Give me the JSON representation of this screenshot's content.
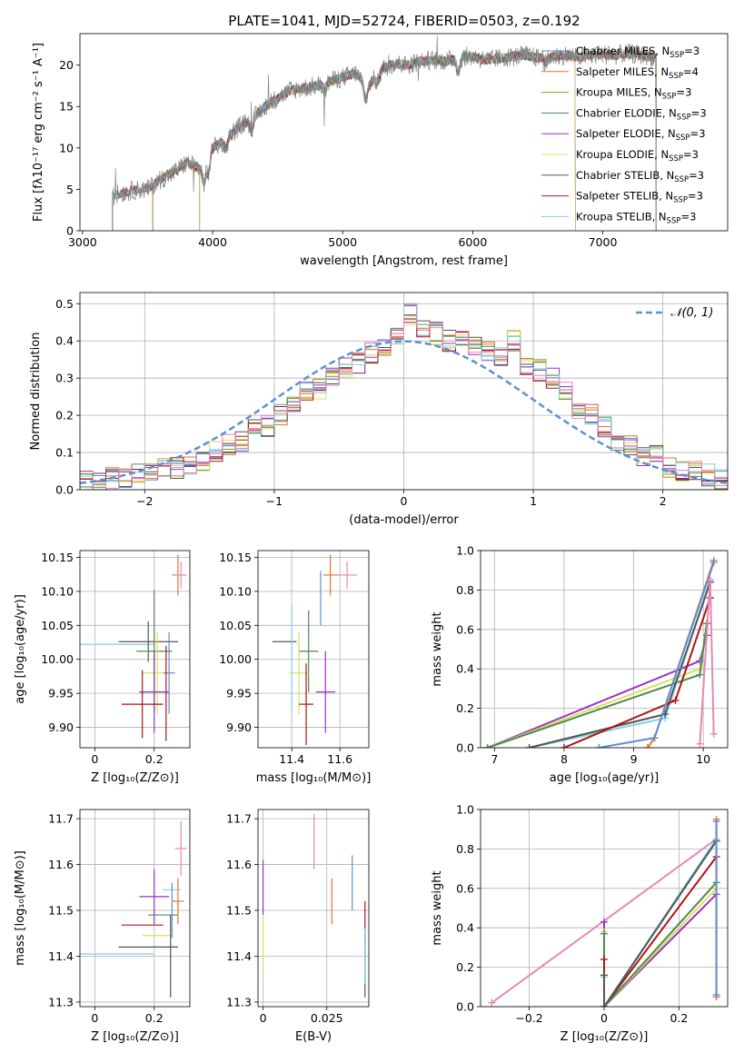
{
  "figure": {
    "title": "PLATE=1041, MJD=52724, FIBERID=0503, z=0.192"
  },
  "colors": {
    "Chabrier MILES": "#5b8fd8",
    "Salpeter MILES": "#e8742c",
    "Kroupa MILES": "#b8861b",
    "Chabrier ELODIE": "#4e8a4e",
    "Salpeter ELODIE": "#9b30c8",
    "Kroupa ELODIE": "#d6e060",
    "Chabrier STELIB": "#555555",
    "Salpeter STELIB": "#b01515",
    "Kroupa STELIB": "#7fd3e0",
    "pink": "#e887b8",
    "data": "#808080"
  },
  "chart_data": [
    {
      "id": "spectrum",
      "type": "line",
      "xlabel": "wavelength [Angstrom, rest frame]",
      "ylabel": "Flux [fλ10⁻¹⁷ erg cm⁻² s⁻¹ A⁻¹]",
      "xlim": [
        2980,
        7960
      ],
      "ylim": [
        0,
        23.8
      ],
      "xticks": [
        3000,
        4000,
        5000,
        6000,
        7000
      ],
      "yticks": [
        0,
        5,
        10,
        15,
        20
      ],
      "grid": false,
      "legend_position": "upper-right",
      "legend": [
        {
          "name": "Chabrier MILES",
          "suffix": "N",
          "sub": "SSP",
          "val": "=3"
        },
        {
          "name": "Salpeter MILES",
          "suffix": "N",
          "sub": "SSP",
          "val": "=4"
        },
        {
          "name": "Kroupa MILES",
          "suffix": "N",
          "sub": "SSP",
          "val": "=3"
        },
        {
          "name": "Chabrier ELODIE",
          "suffix": "N",
          "sub": "SSP",
          "val": "=3"
        },
        {
          "name": "Salpeter ELODIE",
          "suffix": "N",
          "sub": "SSP",
          "val": "=3"
        },
        {
          "name": "Kroupa ELODIE",
          "suffix": "N",
          "sub": "SSP",
          "val": "=3"
        },
        {
          "name": "Chabrier STELIB",
          "suffix": "N",
          "sub": "SSP",
          "val": "=3"
        },
        {
          "name": "Salpeter STELIB",
          "suffix": "N",
          "sub": "SSP",
          "val": "=3"
        },
        {
          "name": "Kroupa STELIB",
          "suffix": "N",
          "sub": "SSP",
          "val": "=3"
        }
      ],
      "continuum": [
        [
          3230,
          4.2
        ],
        [
          3300,
          4.6
        ],
        [
          3400,
          4.9
        ],
        [
          3500,
          5.0
        ],
        [
          3600,
          6.2
        ],
        [
          3700,
          7.0
        ],
        [
          3800,
          8.2
        ],
        [
          3900,
          7.5
        ],
        [
          4000,
          10.0
        ],
        [
          4100,
          11.0
        ],
        [
          4200,
          12.5
        ],
        [
          4300,
          13.5
        ],
        [
          4400,
          15.0
        ],
        [
          4500,
          16.0
        ],
        [
          4600,
          17.0
        ],
        [
          4700,
          17.2
        ],
        [
          4800,
          17.5
        ],
        [
          4900,
          18.0
        ],
        [
          5000,
          18.5
        ],
        [
          5100,
          19.0
        ],
        [
          5200,
          17.5
        ],
        [
          5300,
          19.5
        ],
        [
          5400,
          20.2
        ],
        [
          5500,
          20.0
        ],
        [
          5600,
          20.5
        ],
        [
          5700,
          20.6
        ],
        [
          5800,
          20.5
        ],
        [
          5900,
          21.0
        ],
        [
          6000,
          21.0
        ],
        [
          6100,
          20.6
        ],
        [
          6200,
          20.8
        ],
        [
          6300,
          21.0
        ],
        [
          6400,
          21.2
        ],
        [
          6500,
          20.9
        ],
        [
          6600,
          21.0
        ],
        [
          6700,
          21.2
        ],
        [
          6800,
          21.0
        ],
        [
          6900,
          21.1
        ],
        [
          7000,
          21.3
        ],
        [
          7100,
          21.2
        ],
        [
          7200,
          21.4
        ],
        [
          7300,
          21.2
        ],
        [
          7400,
          21.0
        ]
      ],
      "model_ranges": {
        "Chabrier MILES": [
          3540,
          7410
        ],
        "Salpeter MILES": [
          3540,
          7410
        ],
        "Kroupa MILES": [
          3540,
          7410
        ],
        "Chabrier ELODIE": [
          3900,
          6790
        ],
        "Salpeter ELODIE": [
          3900,
          6790
        ],
        "Kroupa ELODIE": [
          3900,
          6790
        ],
        "Chabrier STELIB": [
          3230,
          7410
        ],
        "Salpeter STELIB": [
          3230,
          7410
        ],
        "Kroupa STELIB": [
          3230,
          7410
        ]
      }
    },
    {
      "id": "residuals",
      "type": "area",
      "xlabel": "(data-model)/error",
      "ylabel": "Normed distribution",
      "xlim": [
        -2.5,
        2.5
      ],
      "ylim": [
        0,
        0.53
      ],
      "xticks": [
        -2,
        -1,
        0,
        1,
        2
      ],
      "yticks": [
        0.0,
        0.1,
        0.2,
        0.3,
        0.4,
        0.5
      ],
      "grid": true,
      "legend_position": "upper-right",
      "gaussian_label": "𝒩(0, 1)",
      "bin_width": 0.1,
      "bin_start": -2.5,
      "base_hist": [
        0.02,
        0.025,
        0.03,
        0.035,
        0.04,
        0.05,
        0.055,
        0.06,
        0.07,
        0.08,
        0.1,
        0.12,
        0.13,
        0.16,
        0.17,
        0.2,
        0.22,
        0.26,
        0.27,
        0.3,
        0.33,
        0.34,
        0.37,
        0.38,
        0.41,
        0.47,
        0.43,
        0.42,
        0.4,
        0.4,
        0.38,
        0.37,
        0.36,
        0.4,
        0.33,
        0.32,
        0.3,
        0.26,
        0.22,
        0.2,
        0.17,
        0.13,
        0.12,
        0.09,
        0.09,
        0.06,
        0.05,
        0.05,
        0.04,
        0.03
      ]
    },
    {
      "id": "age_vs_Z",
      "type": "scatter",
      "xlabel": "Z [log₁₀(Z/Z⊙)]",
      "ylabel": "age  [log₁₀(age/yr)]",
      "xlim": [
        -0.05,
        0.32
      ],
      "ylim": [
        9.87,
        10.16
      ],
      "xticks": [
        0.0,
        0.2
      ],
      "yticks": [
        9.9,
        9.95,
        10.0,
        10.05,
        10.1,
        10.15
      ],
      "grid": true,
      "points": [
        {
          "series": "Kroupa STELIB",
          "x": 0.05,
          "xerr": 0.15,
          "y": 10.022,
          "yerr": 0
        },
        {
          "series": "Chabrier STELIB",
          "x": 0.18,
          "xerr": 0.1,
          "y": 10.026,
          "yerr": 0.03
        },
        {
          "series": "Chabrier ELODIE",
          "x": 0.2,
          "xerr": 0.06,
          "y": 10.012,
          "yerr": 0.09
        },
        {
          "series": "Kroupa ELODIE",
          "x": 0.21,
          "xerr": 0.05,
          "y": 9.98,
          "yerr": 0.06
        },
        {
          "series": "Salpeter ELODIE",
          "x": 0.2,
          "xerr": 0.05,
          "y": 9.952,
          "yerr": 0.06
        },
        {
          "series": "Salpeter STELIB",
          "x": 0.16,
          "xerr": 0.07,
          "y": 9.934,
          "yerr": 0.05
        },
        {
          "series": "Chabrier MILES",
          "x": 0.25,
          "xerr": 0.02,
          "y": 9.98,
          "yerr": 0.06
        },
        {
          "series": "Salpeter STELIB",
          "x": 0.24,
          "xerr": 0.0,
          "y": 9.95,
          "yerr": 0.07
        },
        {
          "series": "Salpeter MILES",
          "x": 0.28,
          "xerr": 0.02,
          "y": 10.124,
          "yerr": 0.03
        },
        {
          "series": "pink",
          "x": 0.29,
          "xerr": 0.02,
          "y": 10.124,
          "yerr": 0.02
        }
      ]
    },
    {
      "id": "age_vs_mass",
      "type": "scatter",
      "xlabel": "mass [log₁₀(M/M⊙)]",
      "ylabel": "",
      "xlim": [
        11.26,
        11.72
      ],
      "ylim": [
        9.87,
        10.16
      ],
      "xticks": [
        11.4,
        11.6
      ],
      "yticks": [
        9.9,
        9.95,
        10.0,
        10.05,
        10.1,
        10.15
      ],
      "grid": true,
      "points": [
        {
          "series": "Chabrier STELIB",
          "x": 11.37,
          "xerr": 0.05,
          "y": 10.026,
          "yerr": 0
        },
        {
          "series": "Chabrier ELODIE",
          "x": 11.47,
          "xerr": 0.04,
          "y": 10.012,
          "yerr": 0.06
        },
        {
          "series": "Kroupa ELODIE",
          "x": 11.43,
          "xerr": 0.04,
          "y": 9.98,
          "yerr": 0.06
        },
        {
          "series": "Salpeter ELODIE",
          "x": 11.54,
          "xerr": 0.04,
          "y": 9.952,
          "yerr": 0.06
        },
        {
          "series": "Salpeter STELIB",
          "x": 11.46,
          "xerr": 0.03,
          "y": 9.934,
          "yerr": 0.06
        },
        {
          "series": "Salpeter MILES",
          "x": 11.56,
          "xerr": 0.03,
          "y": 10.124,
          "yerr": 0.03
        },
        {
          "series": "pink",
          "x": 11.63,
          "xerr": 0.04,
          "y": 10.124,
          "yerr": 0.02
        },
        {
          "series": "Kroupa STELIB",
          "x": 11.4,
          "xerr": 0.0,
          "y": 10.0,
          "yerr": 0.08
        },
        {
          "series": "Chabrier MILES",
          "x": 11.52,
          "xerr": 0.0,
          "y": 10.09,
          "yerr": 0.04
        }
      ]
    },
    {
      "id": "weight_vs_age",
      "type": "line",
      "xlabel": "age  [log₁₀(age/yr)]",
      "ylabel": "mass weight",
      "xlim": [
        6.8,
        10.35
      ],
      "ylim": [
        0,
        1.0
      ],
      "xticks": [
        7,
        8,
        9,
        10
      ],
      "yticks": [
        0.0,
        0.2,
        0.4,
        0.6,
        0.8,
        1.0
      ],
      "grid": true,
      "lines": [
        {
          "series": "Salpeter ELODIE",
          "points": [
            [
              6.9,
              0.0
            ],
            [
              9.95,
              0.44
            ],
            [
              10.05,
              0.57
            ]
          ]
        },
        {
          "series": "Kroupa ELODIE",
          "points": [
            [
              6.9,
              0.0
            ],
            [
              9.95,
              0.4
            ],
            [
              10.05,
              0.6
            ]
          ]
        },
        {
          "series": "Chabrier ELODIE",
          "points": [
            [
              6.9,
              0.0
            ],
            [
              9.95,
              0.37
            ],
            [
              10.05,
              0.63
            ]
          ]
        },
        {
          "series": "Kroupa STELIB",
          "points": [
            [
              7.5,
              0.0
            ],
            [
              9.45,
              0.15
            ],
            [
              10.1,
              0.85
            ]
          ]
        },
        {
          "series": "Chabrier STELIB",
          "points": [
            [
              7.5,
              0.0
            ],
            [
              9.45,
              0.17
            ],
            [
              10.1,
              0.84
            ]
          ]
        },
        {
          "series": "Salpeter STELIB",
          "points": [
            [
              8.0,
              0.0
            ],
            [
              9.6,
              0.24
            ],
            [
              10.1,
              0.76
            ]
          ]
        },
        {
          "series": "Salpeter MILES",
          "points": [
            [
              9.2,
              0.0
            ],
            [
              9.3,
              0.05
            ],
            [
              10.15,
              0.95
            ]
          ]
        },
        {
          "series": "Chabrier MILES",
          "points": [
            [
              8.5,
              0.0
            ],
            [
              9.3,
              0.05
            ],
            [
              10.15,
              0.94
            ]
          ]
        },
        {
          "series": "pink",
          "points": [
            [
              9.95,
              0.02
            ],
            [
              10.1,
              0.85
            ],
            [
              10.15,
              0.07
            ]
          ]
        }
      ]
    },
    {
      "id": "mass_vs_Z",
      "type": "scatter",
      "xlabel": "Z [log₁₀(Z/Z⊙)]",
      "ylabel": "mass [log₁₀(M/M⊙)]",
      "xlim": [
        -0.05,
        0.32
      ],
      "ylim": [
        11.29,
        11.72
      ],
      "xticks": [
        0.0,
        0.2
      ],
      "yticks": [
        11.3,
        11.4,
        11.5,
        11.6,
        11.7
      ],
      "grid": true,
      "points": [
        {
          "series": "Kroupa STELIB",
          "x": 0.05,
          "xerr": 0.15,
          "y": 11.405,
          "yerr": 0
        },
        {
          "series": "Chabrier STELIB",
          "x": 0.18,
          "xerr": 0.1,
          "y": 11.42,
          "yerr": 0.0
        },
        {
          "series": "Kroupa ELODIE",
          "x": 0.21,
          "xerr": 0.05,
          "y": 11.445,
          "yerr": 0.0
        },
        {
          "series": "Salpeter STELIB",
          "x": 0.16,
          "xerr": 0.07,
          "y": 11.468,
          "yerr": 0.0
        },
        {
          "series": "Chabrier ELODIE",
          "x": 0.23,
          "xerr": 0.05,
          "y": 11.49,
          "yerr": 0.0
        },
        {
          "series": "Salpeter ELODIE",
          "x": 0.2,
          "xerr": 0.05,
          "y": 11.53,
          "yerr": 0.06
        },
        {
          "series": "Kroupa STELIB",
          "x": 0.26,
          "xerr": 0.03,
          "y": 11.545,
          "yerr": 0.0
        },
        {
          "series": "Chabrier MILES",
          "x": 0.26,
          "xerr": 0.0,
          "y": 11.5,
          "yerr": 0.06
        },
        {
          "series": "Salpeter MILES",
          "x": 0.28,
          "xerr": 0.02,
          "y": 11.52,
          "yerr": 0.05
        },
        {
          "series": "pink",
          "x": 0.29,
          "xerr": 0.02,
          "y": 11.635,
          "yerr": 0.06
        },
        {
          "series": "Chabrier STELIB",
          "x": 0.255,
          "xerr": 0.0,
          "y": 11.4,
          "yerr": 0.09
        }
      ]
    },
    {
      "id": "mass_vs_EBV",
      "type": "scatter",
      "xlabel": "E(B-V)",
      "ylabel": "",
      "xlim": [
        -0.002,
        0.0415
      ],
      "ylim": [
        11.29,
        11.72
      ],
      "xticks": [
        0.0,
        0.025
      ],
      "yticks": [
        11.3,
        11.4,
        11.5,
        11.6,
        11.7
      ],
      "grid": true,
      "points": [
        {
          "series": "Salpeter ELODIE",
          "x": 0.0,
          "xerr": 0.0,
          "y": 11.55,
          "yerr": 0.06
        },
        {
          "series": "Kroupa ELODIE",
          "x": 0.0,
          "xerr": 0.0,
          "y": 11.43,
          "yerr": 0.06
        },
        {
          "series": "pink",
          "x": 0.02,
          "xerr": 0.0,
          "y": 11.65,
          "yerr": 0.06
        },
        {
          "series": "Salpeter MILES",
          "x": 0.027,
          "xerr": 0.0,
          "y": 11.52,
          "yerr": 0.05
        },
        {
          "series": "Chabrier MILES",
          "x": 0.035,
          "xerr": 0.0,
          "y": 11.56,
          "yerr": 0.06
        },
        {
          "series": "Salpeter STELIB",
          "x": 0.04,
          "xerr": 0.0,
          "y": 11.47,
          "yerr": 0.05
        },
        {
          "series": "Chabrier STELIB",
          "x": 0.04,
          "xerr": 0.0,
          "y": 11.38,
          "yerr": 0.07
        },
        {
          "series": "Kroupa STELIB",
          "x": 0.04,
          "xerr": 0.0,
          "y": 11.4,
          "yerr": 0.06
        }
      ]
    },
    {
      "id": "weight_vs_Z",
      "type": "line",
      "xlabel": "Z [log₁₀(Z/Z⊙)]",
      "ylabel": "mass weight",
      "xlim": [
        -0.33,
        0.33
      ],
      "ylim": [
        0,
        1.0
      ],
      "xticks": [
        -0.2,
        0.0,
        0.2
      ],
      "yticks": [
        0.0,
        0.2,
        0.4,
        0.6,
        0.8,
        1.0
      ],
      "grid": true,
      "lines": [
        {
          "series": "pink",
          "points": [
            [
              -0.3,
              0.02
            ],
            [
              0.3,
              0.85
            ]
          ]
        },
        {
          "series": "Salpeter ELODIE",
          "points": [
            [
              0.0,
              0.43
            ],
            [
              0.0,
              0.0
            ],
            [
              0.3,
              0.57
            ]
          ]
        },
        {
          "series": "Kroupa ELODIE",
          "points": [
            [
              0.0,
              0.38
            ],
            [
              0.0,
              0.0
            ],
            [
              0.3,
              0.6
            ]
          ]
        },
        {
          "series": "Chabrier ELODIE",
          "points": [
            [
              0.0,
              0.37
            ],
            [
              0.0,
              0.0
            ],
            [
              0.3,
              0.63
            ]
          ]
        },
        {
          "series": "Salpeter STELIB",
          "points": [
            [
              0.0,
              0.24
            ],
            [
              0.0,
              0.0
            ],
            [
              0.3,
              0.76
            ]
          ]
        },
        {
          "series": "Kroupa STELIB",
          "points": [
            [
              0.0,
              0.15
            ],
            [
              0.0,
              0.0
            ],
            [
              0.3,
              0.85
            ]
          ]
        },
        {
          "series": "Chabrier STELIB",
          "points": [
            [
              0.0,
              0.16
            ],
            [
              0.0,
              0.0
            ],
            [
              0.3,
              0.84
            ]
          ]
        },
        {
          "series": "Salpeter MILES",
          "points": [
            [
              0.3,
              0.05
            ],
            [
              0.3,
              0.95
            ]
          ]
        },
        {
          "series": "Chabrier MILES",
          "points": [
            [
              0.3,
              0.06
            ],
            [
              0.3,
              0.94
            ]
          ]
        }
      ]
    }
  ]
}
